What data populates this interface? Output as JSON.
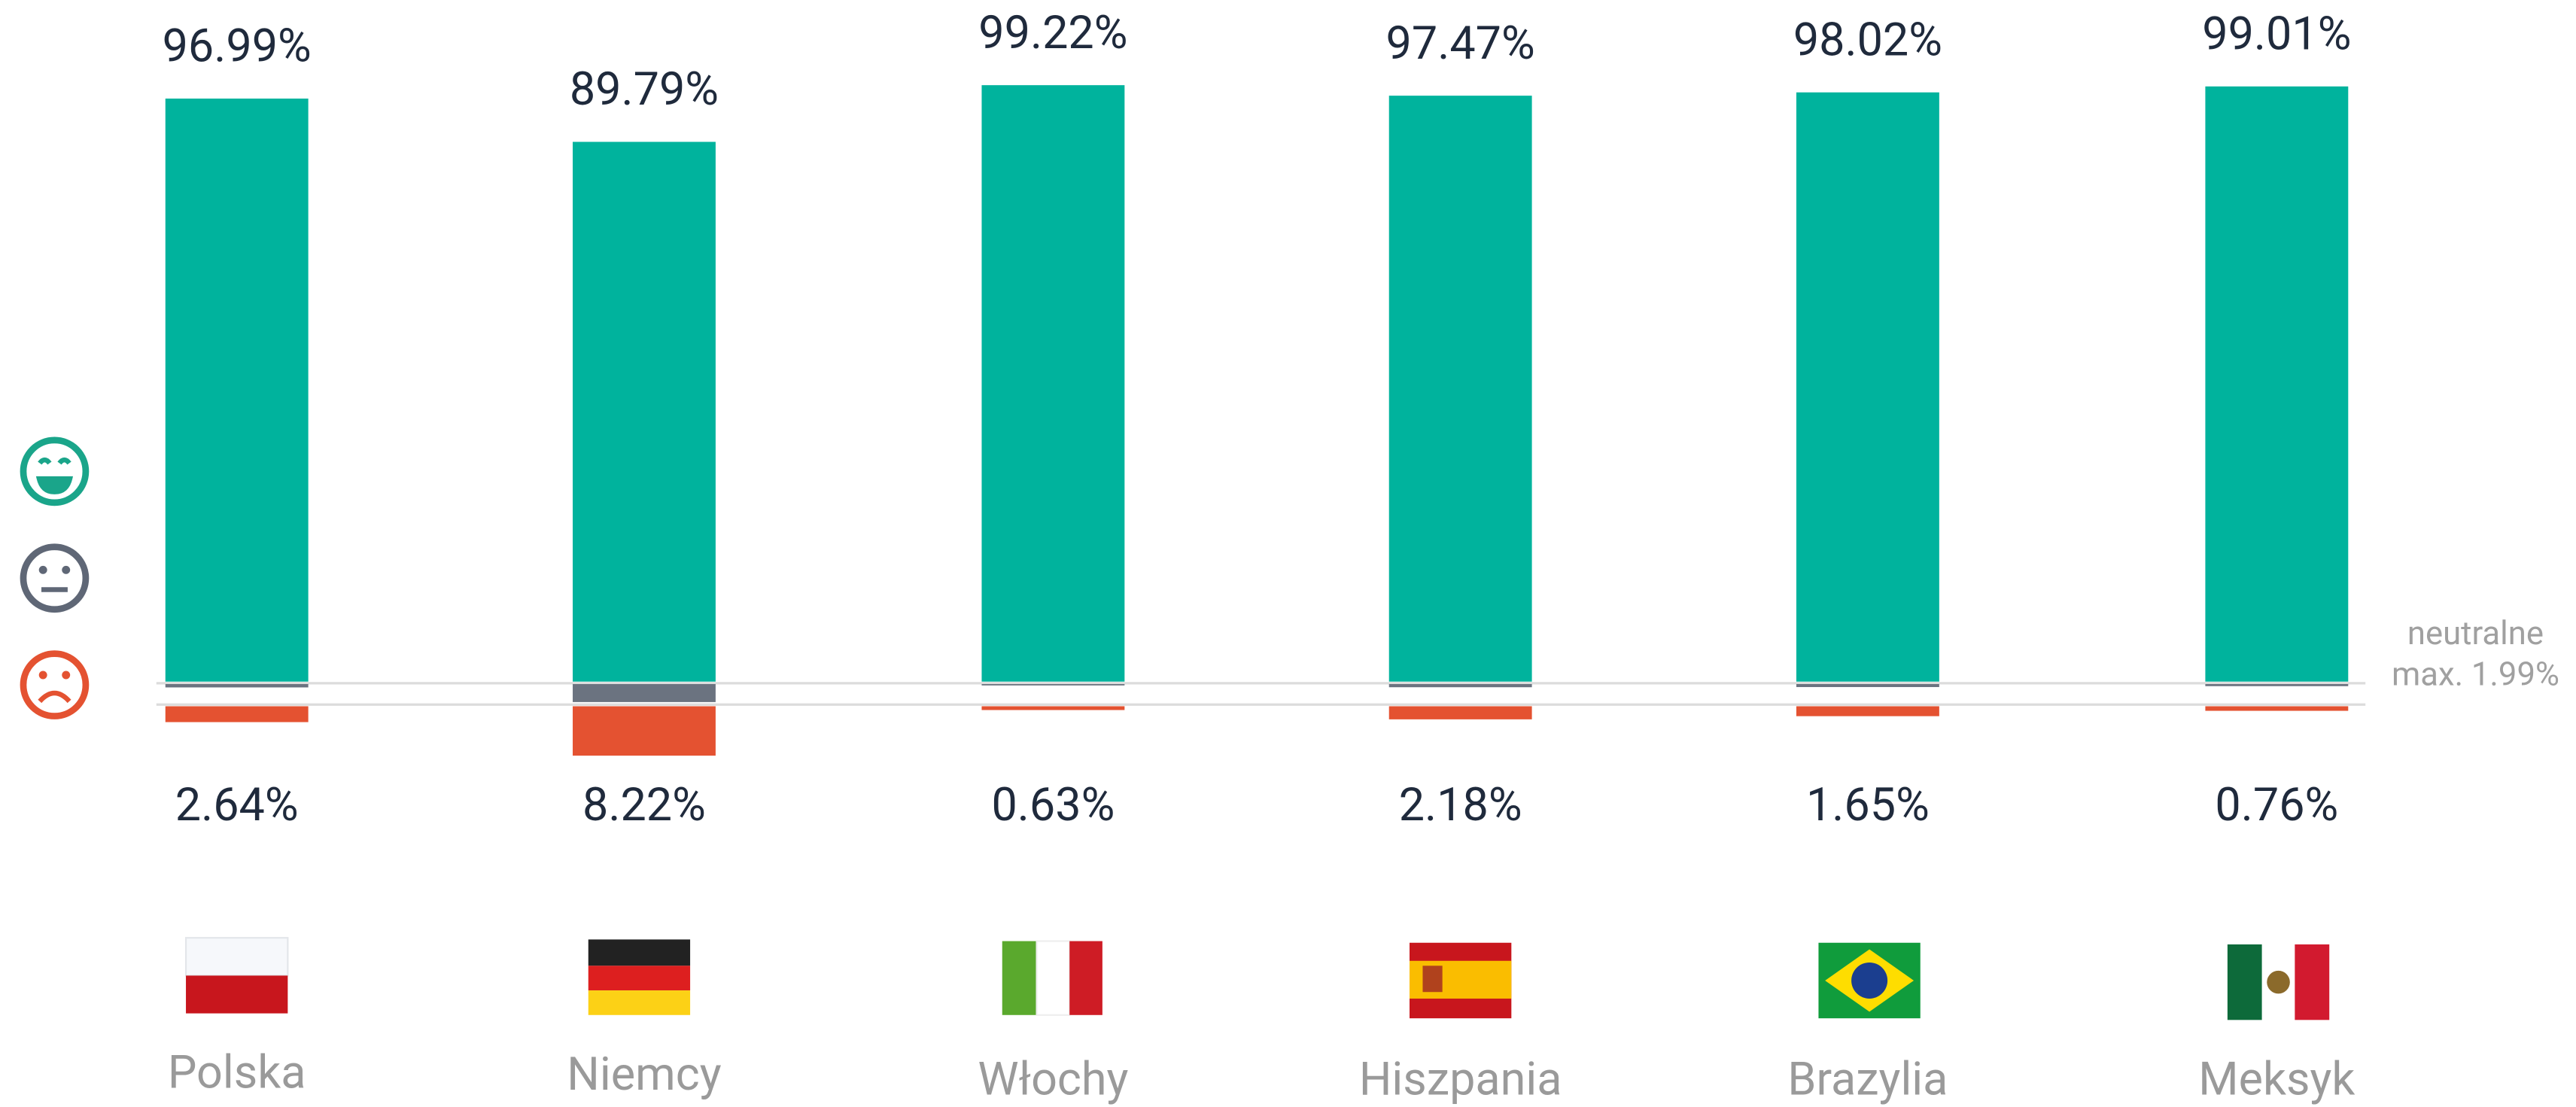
{
  "chart_data": {
    "type": "diverging-bar",
    "categories": [
      "Polska",
      "Niemcy",
      "Włochy",
      "Hiszpania",
      "Brazylia",
      "Meksyk"
    ],
    "series": [
      {
        "name": "pozytywne",
        "color": "#00b39d",
        "values": [
          96.99,
          89.79,
          99.22,
          97.47,
          98.02,
          99.01
        ]
      },
      {
        "name": "neutralne",
        "color": "#6b7380",
        "values": [
          0.37,
          1.99,
          0.15,
          0.35,
          0.33,
          0.23
        ]
      },
      {
        "name": "negatywne",
        "color": "#e45231",
        "values": [
          2.64,
          8.22,
          0.63,
          2.18,
          1.65,
          0.76
        ]
      }
    ],
    "value_labels": [
      [
        "96.99%",
        "89.79%",
        "99.22%",
        "97.47%",
        "98.02%",
        "99.01%"
      ],
      [
        "2.64%",
        "8.22%",
        "0.63%",
        "2.18%",
        "1.65%",
        "0.76%"
      ]
    ],
    "annotations": [
      "neutralne",
      "max. 1.99%"
    ]
  }
}
